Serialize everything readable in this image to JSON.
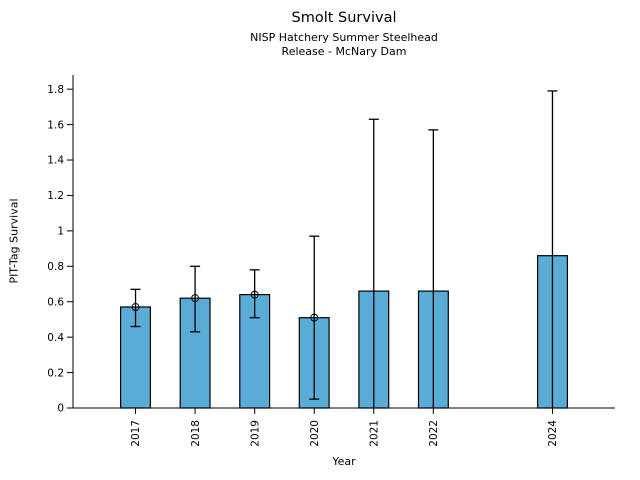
{
  "chart_data": {
    "type": "bar",
    "title": "Smolt Survival",
    "subtitle1": "NISP Hatchery Summer Steelhead",
    "subtitle2": "Release - McNary Dam",
    "xlabel": "Year",
    "ylabel": "PIT-Tag Survival",
    "categories": [
      "2017",
      "2018",
      "2019",
      "2020",
      "2021",
      "2022",
      "2024"
    ],
    "x_numeric": [
      2017,
      2018,
      2019,
      2020,
      2021,
      2022,
      2024
    ],
    "values": [
      0.57,
      0.62,
      0.64,
      0.51,
      0.66,
      0.66,
      0.86
    ],
    "error_low": [
      0.46,
      0.43,
      0.51,
      0.05,
      0.0,
      0.0,
      0.0
    ],
    "error_high": [
      0.67,
      0.8,
      0.78,
      0.97,
      1.63,
      1.57,
      1.79
    ],
    "point_markers": [
      true,
      true,
      true,
      true,
      false,
      false,
      false
    ],
    "ylim": [
      0,
      1.88
    ],
    "xlim": [
      2015.95,
      2025.05
    ],
    "yticks": [
      0,
      0.2,
      0.4,
      0.6,
      0.8,
      1,
      1.2,
      1.4,
      1.6,
      1.8
    ],
    "ytick_labels": [
      "0",
      "0.2",
      "0.4",
      "0.6",
      "0.8",
      "1",
      "1.2",
      "1.4",
      "1.6",
      "1.8"
    ],
    "bar_width_years": 0.5,
    "grid": false,
    "legend": null,
    "colors": {
      "bar_fill": "#5aabd6",
      "bar_edge": "#000000",
      "error_bar": "#000000",
      "axis": "#000000",
      "text": "#000000",
      "background": "#ffffff"
    }
  }
}
